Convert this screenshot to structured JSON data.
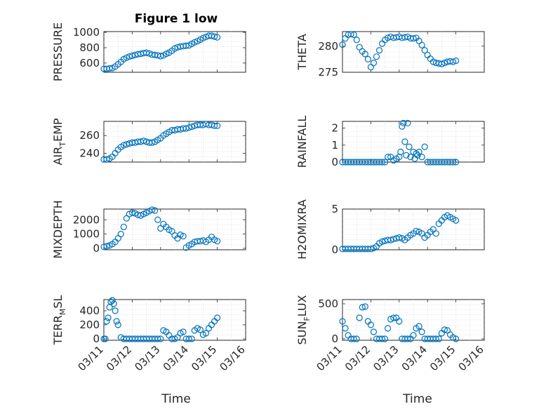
{
  "figure_title": "Figure 1 low",
  "x_label": "Time",
  "x_ticks": [
    "03/11",
    "03/12",
    "03/13",
    "03/14",
    "03/15",
    "03/16"
  ],
  "marker_color": "#0072BD",
  "chart_data": [
    {
      "id": "pressure",
      "type": "scatter",
      "ylabel": "PRESSURE",
      "ylim": [
        480,
        1010
      ],
      "yticks": [
        600,
        800,
        1000
      ],
      "x": [
        0.0,
        0.1,
        0.2,
        0.3,
        0.4,
        0.5,
        0.6,
        0.7,
        0.8,
        0.9,
        1.0,
        1.1,
        1.2,
        1.3,
        1.4,
        1.5,
        1.6,
        1.7,
        1.8,
        1.9,
        2.0,
        2.1,
        2.2,
        2.3,
        2.4,
        2.5,
        2.6,
        2.7,
        2.8,
        2.9,
        3.0,
        3.1,
        3.2,
        3.3,
        3.4,
        3.5,
        3.6,
        3.7,
        3.8,
        3.9,
        4.0
      ],
      "y": [
        525,
        525,
        530,
        535,
        555,
        585,
        615,
        650,
        670,
        685,
        695,
        705,
        715,
        720,
        730,
        735,
        725,
        710,
        705,
        700,
        690,
        700,
        720,
        735,
        760,
        790,
        805,
        815,
        820,
        825,
        830,
        850,
        870,
        885,
        905,
        925,
        940,
        955,
        955,
        945,
        935
      ]
    },
    {
      "id": "theta",
      "type": "scatter",
      "ylabel": "THETA",
      "ylim": [
        275,
        282.8
      ],
      "yticks": [
        275,
        280
      ],
      "x": [
        0.0,
        0.1,
        0.2,
        0.3,
        0.4,
        0.5,
        0.6,
        0.7,
        0.8,
        0.9,
        1.0,
        1.1,
        1.2,
        1.3,
        1.4,
        1.5,
        1.6,
        1.7,
        1.8,
        1.9,
        2.0,
        2.1,
        2.2,
        2.3,
        2.4,
        2.5,
        2.6,
        2.7,
        2.8,
        2.9,
        3.0,
        3.1,
        3.2,
        3.3,
        3.4,
        3.5,
        3.6,
        3.7,
        3.8,
        3.9,
        4.0
      ],
      "y": [
        280.3,
        281.5,
        282.2,
        282.3,
        282.2,
        281.2,
        279.8,
        279.0,
        278.5,
        277.5,
        276.0,
        276.8,
        278.0,
        279.2,
        280.5,
        281.2,
        281.6,
        281.8,
        281.6,
        281.7,
        281.8,
        281.6,
        281.7,
        281.8,
        281.5,
        281.5,
        281.6,
        281.0,
        280.2,
        279.2,
        278.3,
        277.6,
        277.0,
        276.8,
        276.7,
        276.6,
        276.8,
        277.0,
        277.1,
        277.0,
        277.2
      ]
    },
    {
      "id": "air_temp",
      "type": "scatter",
      "ylabel": "AIR_TEMP",
      "ylim": [
        230,
        276
      ],
      "yticks": [
        240,
        260
      ],
      "x": [
        0.0,
        0.1,
        0.2,
        0.3,
        0.4,
        0.5,
        0.6,
        0.7,
        0.8,
        0.9,
        1.0,
        1.1,
        1.2,
        1.3,
        1.4,
        1.5,
        1.6,
        1.7,
        1.8,
        1.9,
        2.0,
        2.1,
        2.2,
        2.3,
        2.4,
        2.5,
        2.6,
        2.7,
        2.8,
        2.9,
        3.0,
        3.1,
        3.2,
        3.3,
        3.4,
        3.5,
        3.6,
        3.7,
        3.8,
        3.9,
        4.0
      ],
      "y": [
        233,
        233,
        234,
        236,
        240,
        244,
        247,
        249,
        250,
        251,
        252,
        252,
        253,
        253,
        254,
        253,
        252,
        252,
        253,
        255,
        257,
        260,
        262,
        264,
        266,
        266,
        267,
        267,
        268,
        268,
        269,
        270,
        271,
        272,
        272,
        272,
        273,
        272,
        272,
        271,
        271
      ]
    },
    {
      "id": "rainfall",
      "type": "scatter",
      "ylabel": "RAINFALL",
      "ylim": [
        0,
        2.4
      ],
      "yticks": [
        0,
        1,
        2
      ],
      "x": [
        0.0,
        0.1,
        0.2,
        0.3,
        0.4,
        0.5,
        0.6,
        0.7,
        0.8,
        0.9,
        1.0,
        1.1,
        1.2,
        1.3,
        1.4,
        1.5,
        1.6,
        1.7,
        1.8,
        1.9,
        2.0,
        2.05,
        2.1,
        2.15,
        2.2,
        2.25,
        2.3,
        2.35,
        2.4,
        2.5,
        2.55,
        2.6,
        2.65,
        2.7,
        2.8,
        2.9,
        3.0,
        3.1,
        3.2,
        3.3,
        3.4,
        3.5,
        3.6,
        3.7,
        3.8,
        3.9,
        4.0
      ],
      "y": [
        0,
        0,
        0,
        0,
        0,
        0,
        0,
        0,
        0,
        0,
        0,
        0,
        0,
        0,
        0,
        0,
        0.3,
        0.3,
        0.1,
        0.2,
        0.3,
        0.6,
        2.1,
        2.3,
        1.2,
        0.4,
        2.3,
        0.9,
        0.3,
        0.6,
        0.2,
        0.5,
        0.4,
        0.6,
        0.3,
        0.9,
        0,
        0,
        0,
        0,
        0,
        0,
        0,
        0,
        0,
        0,
        0
      ]
    },
    {
      "id": "mixdepth",
      "type": "scatter",
      "ylabel": "MIXDEPTH",
      "ylim": [
        -100,
        2750
      ],
      "yticks": [
        0,
        1000,
        2000
      ],
      "x": [
        0.0,
        0.1,
        0.2,
        0.3,
        0.4,
        0.5,
        0.6,
        0.7,
        0.8,
        0.9,
        1.0,
        1.1,
        1.2,
        1.3,
        1.4,
        1.5,
        1.6,
        1.7,
        1.8,
        1.9,
        2.0,
        2.1,
        2.2,
        2.3,
        2.4,
        2.5,
        2.6,
        2.7,
        2.8,
        2.9,
        3.0,
        3.1,
        3.2,
        3.3,
        3.4,
        3.5,
        3.6,
        3.7,
        3.8,
        3.9,
        4.0
      ],
      "y": [
        100,
        150,
        200,
        300,
        450,
        700,
        1000,
        1500,
        2100,
        2400,
        2500,
        2450,
        2350,
        2300,
        2400,
        2500,
        2600,
        2700,
        2650,
        2000,
        1400,
        1700,
        1500,
        1300,
        1200,
        900,
        700,
        950,
        850,
        50,
        200,
        300,
        450,
        500,
        500,
        550,
        450,
        600,
        800,
        600,
        500
      ]
    },
    {
      "id": "h2omixra",
      "type": "scatter",
      "ylabel": "H2OMIXRA",
      "ylim": [
        0,
        5
      ],
      "yticks": [
        0,
        5
      ],
      "x": [
        0.0,
        0.1,
        0.2,
        0.3,
        0.4,
        0.5,
        0.6,
        0.7,
        0.8,
        0.9,
        1.0,
        1.1,
        1.2,
        1.3,
        1.4,
        1.5,
        1.6,
        1.7,
        1.8,
        1.9,
        2.0,
        2.1,
        2.2,
        2.3,
        2.4,
        2.5,
        2.6,
        2.7,
        2.8,
        2.9,
        3.0,
        3.1,
        3.2,
        3.3,
        3.4,
        3.5,
        3.6,
        3.7,
        3.8,
        3.9,
        4.0
      ],
      "y": [
        0.1,
        0.1,
        0.1,
        0.1,
        0.1,
        0.1,
        0.1,
        0.1,
        0.1,
        0.1,
        0.1,
        0.2,
        0.4,
        0.8,
        1.0,
        1.1,
        1.2,
        1.2,
        1.3,
        1.4,
        1.5,
        1.4,
        1.2,
        1.5,
        1.8,
        2.0,
        2.3,
        2.2,
        2.0,
        1.5,
        1.8,
        2.2,
        2.5,
        2.0,
        3.2,
        3.6,
        4.0,
        4.2,
        4.0,
        3.8,
        3.6
      ]
    },
    {
      "id": "terr_msl",
      "type": "scatter",
      "ylabel": "TERR_MSL",
      "ylim": [
        -20,
        560
      ],
      "yticks": [
        0,
        200,
        400
      ],
      "x": [
        0.0,
        0.05,
        0.1,
        0.15,
        0.2,
        0.25,
        0.3,
        0.35,
        0.4,
        0.45,
        0.5,
        0.6,
        0.7,
        0.8,
        0.9,
        1.0,
        1.1,
        1.2,
        1.3,
        1.4,
        1.5,
        1.6,
        1.7,
        1.8,
        1.9,
        2.0,
        2.1,
        2.2,
        2.3,
        2.4,
        2.5,
        2.6,
        2.7,
        2.8,
        2.9,
        3.0,
        3.1,
        3.2,
        3.3,
        3.4,
        3.5,
        3.6,
        3.7,
        3.8,
        3.9,
        4.0
      ],
      "y": [
        0,
        0,
        250,
        300,
        450,
        530,
        550,
        500,
        400,
        250,
        200,
        20,
        0,
        0,
        0,
        0,
        0,
        0,
        0,
        0,
        0,
        0,
        0,
        0,
        0,
        0,
        120,
        100,
        50,
        0,
        0,
        20,
        80,
        100,
        0,
        0,
        0,
        120,
        150,
        130,
        60,
        80,
        150,
        200,
        250,
        300
      ]
    },
    {
      "id": "sun_flux",
      "type": "scatter",
      "ylabel": "SUN_FLUX",
      "ylim": [
        -20,
        560
      ],
      "yticks": [
        0,
        500
      ],
      "x": [
        0.0,
        0.1,
        0.2,
        0.3,
        0.4,
        0.5,
        0.6,
        0.7,
        0.8,
        0.9,
        1.0,
        1.1,
        1.2,
        1.3,
        1.4,
        1.5,
        1.6,
        1.7,
        1.8,
        1.9,
        2.0,
        2.1,
        2.2,
        2.3,
        2.4,
        2.5,
        2.6,
        2.7,
        2.8,
        2.9,
        3.0,
        3.1,
        3.2,
        3.3,
        3.4,
        3.5,
        3.6,
        3.7,
        3.8,
        3.9,
        4.0
      ],
      "y": [
        250,
        150,
        50,
        0,
        0,
        0,
        300,
        450,
        460,
        250,
        200,
        100,
        0,
        0,
        0,
        0,
        150,
        280,
        300,
        300,
        250,
        0,
        0,
        0,
        0,
        50,
        150,
        180,
        100,
        0,
        0,
        0,
        0,
        0,
        0,
        80,
        130,
        120,
        60,
        20,
        0
      ]
    }
  ]
}
